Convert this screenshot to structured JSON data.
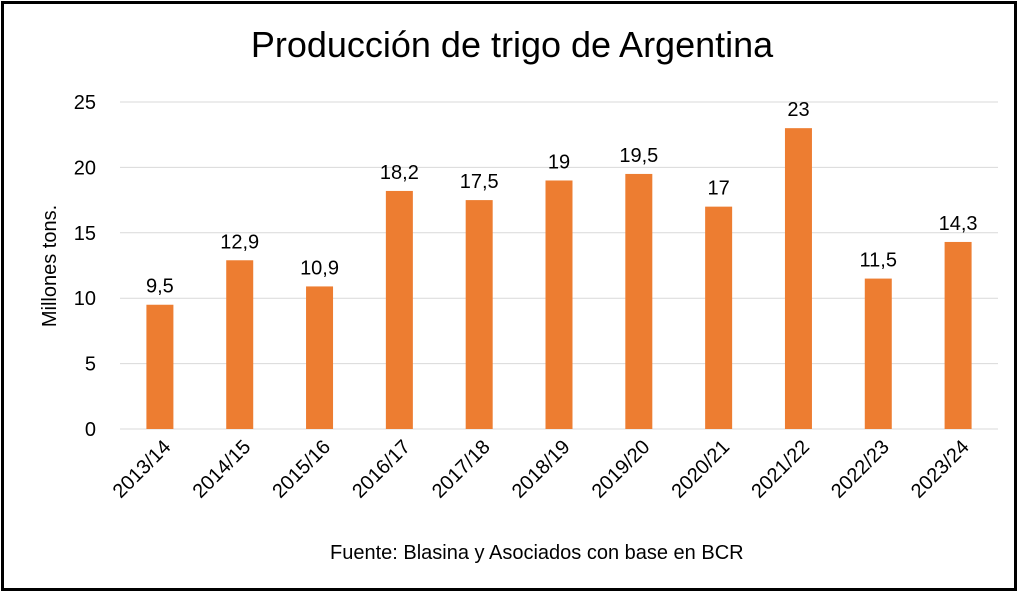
{
  "chart_data": {
    "type": "bar",
    "title": "Producción de trigo de Argentina",
    "ylabel": "Millones tons.",
    "xlabel": "",
    "source_note": "Fuente: Blasina y Asociados con base en BCR",
    "categories": [
      "2013/14",
      "2014/15",
      "2015/16",
      "2016/17",
      "2017/18",
      "2018/19",
      "2019/20",
      "2020/21",
      "2021/22",
      "2022/23",
      "2023/24"
    ],
    "values": [
      9.5,
      12.9,
      10.9,
      18.2,
      17.5,
      19,
      19.5,
      17,
      23,
      11.5,
      14.3
    ],
    "data_labels": [
      "9,5",
      "12,9",
      "10,9",
      "18,2",
      "17,5",
      "19",
      "19,5",
      "17",
      "23",
      "11,5",
      "14,3"
    ],
    "yticks": [
      0,
      5,
      10,
      15,
      20,
      25
    ],
    "ylim": [
      0,
      25
    ],
    "grid": true,
    "legend": "none",
    "bar_color": "#ed7d31",
    "grid_color": "#d9d9d9"
  }
}
